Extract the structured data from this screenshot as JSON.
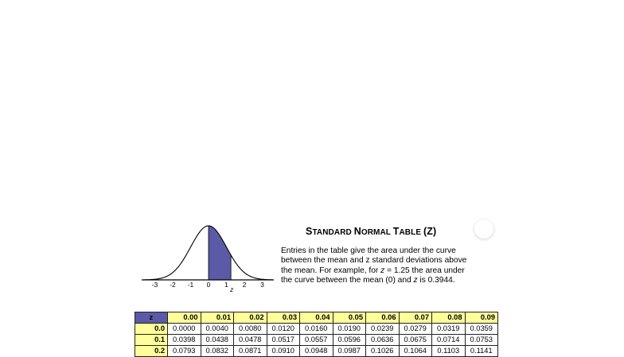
{
  "title": "Standard Normal Table (z)",
  "title_parts": {
    "s1": "S",
    "s2": "TANDARD ",
    "n1": "N",
    "n2": "ORMAL ",
    "t1": "T",
    "t2": "ABLE ",
    "z": "(Z)"
  },
  "description": {
    "line1": "Entries in the table give the area under the curve",
    "line2": "between the mean and z standard deviations above",
    "line3_a": "the mean. For example, for ",
    "line3_z": "z",
    "line3_b": " = 1.25 the area under",
    "line4_a": "the curve between the mean (0)  and ",
    "line4_z": "z",
    "line4_b": "  is 0.3944."
  },
  "figure": {
    "axis_ticks": [
      "-3",
      "-2",
      "-1",
      "0",
      "1",
      "2",
      "3"
    ],
    "z_marker": "z",
    "shaded_upper": 1.25,
    "fill_color": "#5b5aa6"
  },
  "table": {
    "corner": "z",
    "columns": [
      "0.00",
      "0.01",
      "0.02",
      "0.03",
      "0.04",
      "0.05",
      "0.06",
      "0.07",
      "0.08",
      "0.09"
    ],
    "rows": [
      {
        "z": "0.0",
        "values": [
          "0.0000",
          "0.0040",
          "0.0080",
          "0.0120",
          "0.0160",
          "0.0190",
          "0.0239",
          "0.0279",
          "0.0319",
          "0.0359"
        ]
      },
      {
        "z": "0.1",
        "values": [
          "0.0398",
          "0.0438",
          "0.0478",
          "0.0517",
          "0.0557",
          "0.0596",
          "0.0636",
          "0.0675",
          "0.0714",
          "0.0753"
        ]
      },
      {
        "z": "0.2",
        "values": [
          "0.0793",
          "0.0832",
          "0.0871",
          "0.0910",
          "0.0948",
          "0.0987",
          "0.1026",
          "0.1064",
          "0.1103",
          "0.1141"
        ]
      }
    ],
    "header_color": "#ffff99",
    "corner_color": "#5b5aa6"
  }
}
